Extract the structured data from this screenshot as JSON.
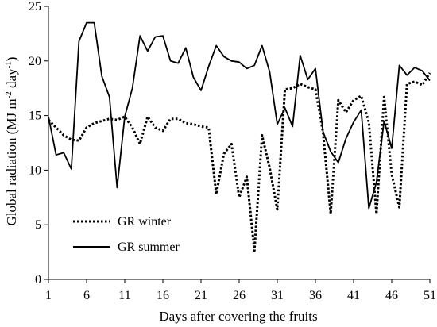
{
  "chart_data": {
    "type": "line",
    "xlabel": "Days after covering the fruits",
    "ylabel": "Global radiation (MJ m",
    "ylabel_sup1": "-2",
    "ylabel_mid": " day",
    "ylabel_sup2": "-1",
    "ylabel_end": ")",
    "xlim": [
      1,
      51
    ],
    "ylim": [
      0,
      25
    ],
    "x_ticks": [
      1,
      6,
      11,
      16,
      21,
      26,
      31,
      36,
      41,
      46,
      51
    ],
    "y_ticks": [
      0,
      5,
      10,
      15,
      20,
      25
    ],
    "grid": false,
    "legend_position": "bottom-left",
    "series": [
      {
        "name": "GR winter",
        "style": "dotted",
        "color": "#000000",
        "x": [
          1,
          2,
          3,
          4,
          5,
          6,
          7,
          8,
          9,
          10,
          11,
          12,
          13,
          14,
          15,
          16,
          17,
          18,
          19,
          20,
          21,
          22,
          23,
          24,
          25,
          26,
          27,
          28,
          29,
          30,
          31,
          32,
          33,
          34,
          35,
          36,
          37,
          38,
          39,
          40,
          41,
          42,
          43,
          44,
          45,
          46,
          47,
          48,
          49,
          50,
          51
        ],
        "y": [
          14.6,
          13.9,
          13.2,
          12.8,
          12.7,
          13.9,
          14.3,
          14.5,
          14.7,
          14.6,
          14.9,
          13.9,
          12.4,
          14.9,
          13.9,
          13.6,
          14.7,
          14.7,
          14.3,
          14.2,
          14.0,
          13.9,
          7.8,
          11.5,
          12.4,
          7.5,
          9.4,
          2.6,
          13.2,
          10.2,
          6.4,
          17.4,
          17.5,
          17.9,
          17.6,
          17.4,
          13.4,
          6.0,
          16.4,
          15.3,
          16.4,
          16.8,
          14.4,
          6.0,
          16.7,
          9.6,
          6.6,
          17.9,
          18.1,
          17.8,
          18.9
        ]
      },
      {
        "name": "GR summer",
        "style": "solid",
        "color": "#000000",
        "x": [
          1,
          2,
          3,
          4,
          5,
          6,
          7,
          8,
          9,
          10,
          11,
          12,
          13,
          14,
          15,
          16,
          17,
          18,
          19,
          20,
          21,
          22,
          23,
          24,
          25,
          26,
          27,
          28,
          29,
          30,
          31,
          32,
          33,
          34,
          35,
          36,
          37,
          38,
          39,
          40,
          41,
          42,
          43,
          44,
          45,
          46,
          47,
          48,
          49,
          50,
          51
        ],
        "y": [
          14.9,
          11.4,
          11.6,
          10.1,
          21.8,
          23.5,
          23.5,
          18.6,
          16.7,
          8.4,
          14.9,
          17.5,
          22.3,
          20.9,
          22.2,
          22.3,
          20.0,
          19.8,
          21.2,
          18.5,
          17.3,
          19.5,
          21.4,
          20.4,
          20.0,
          19.9,
          19.3,
          19.6,
          21.4,
          19.0,
          14.2,
          15.7,
          14.0,
          20.5,
          18.3,
          19.3,
          13.5,
          11.7,
          10.7,
          12.9,
          14.4,
          15.5,
          6.5,
          8.9,
          14.5,
          12.0,
          19.6,
          18.7,
          19.4,
          19.1,
          18.2
        ]
      }
    ]
  }
}
